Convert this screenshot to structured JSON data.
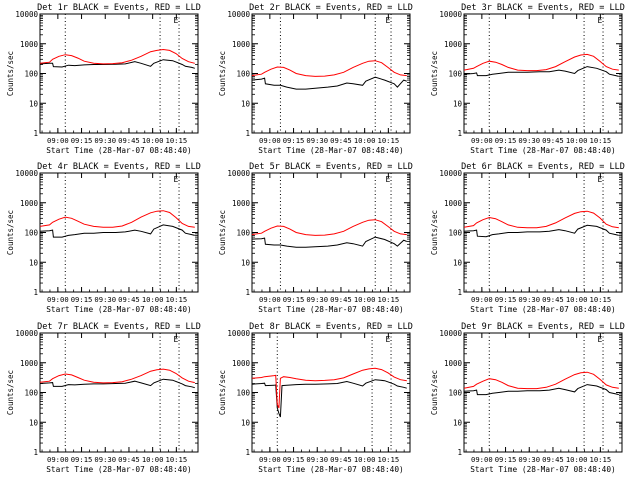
{
  "figure": {
    "xlabel": "Start Time (28-Mar-07 08:48:40)",
    "ylabel": "Counts/sec",
    "y_ticks": [
      "1",
      "10",
      "100",
      "1000",
      "10000"
    ],
    "x_ticks": [
      "09:00",
      "09:15",
      "09:30",
      "09:45",
      "10:00",
      "10:15"
    ],
    "marker": "E",
    "colors": {
      "events": "#000000",
      "lld": "#ff0000",
      "axis": "#000000",
      "background": "#ffffff"
    }
  },
  "chart_data": [
    {
      "type": "line",
      "title": "Det 1r BLACK = Events, RED = LLD",
      "x_range_min": [
        0,
        100
      ],
      "ylim": [
        1,
        10000
      ],
      "y_scale": "log",
      "x_ticks_min": [
        11.3,
        26.3,
        41.3,
        56.3,
        71.3,
        86.3
      ],
      "vlines_min": [
        16,
        76,
        88
      ],
      "marker_min": 86,
      "series": [
        {
          "name": "BLACK = Events",
          "x": [
            0,
            6,
            8,
            8.5,
            14,
            18,
            22,
            28,
            34,
            40,
            48,
            54,
            60,
            64,
            70,
            72,
            78,
            84,
            90,
            92,
            96,
            98
          ],
          "y": [
            210,
            220,
            220,
            170,
            165,
            190,
            185,
            195,
            200,
            200,
            205,
            210,
            250,
            220,
            175,
            220,
            290,
            270,
            200,
            175,
            160,
            150
          ]
        },
        {
          "name": "RED = LLD",
          "x": [
            0,
            6,
            8,
            12,
            16,
            20,
            24,
            28,
            34,
            40,
            46,
            52,
            58,
            64,
            70,
            74,
            78,
            82,
            86,
            90,
            94,
            98
          ],
          "y": [
            220,
            240,
            300,
            380,
            430,
            400,
            330,
            260,
            220,
            210,
            215,
            230,
            280,
            380,
            540,
            600,
            640,
            600,
            470,
            320,
            250,
            220
          ]
        }
      ]
    },
    {
      "type": "line",
      "title": "Det 2r BLACK = Events, RED = LLD",
      "x_range_min": [
        0,
        100
      ],
      "ylim": [
        1,
        10000
      ],
      "y_scale": "log",
      "x_ticks_min": [
        11.3,
        26.3,
        41.3,
        56.3,
        71.3,
        86.3
      ],
      "vlines_min": [
        18,
        78,
        88
      ],
      "marker_min": 86,
      "series": [
        {
          "name": "BLACK = Events",
          "x": [
            0,
            6,
            8,
            8.5,
            14,
            18,
            22,
            28,
            34,
            40,
            48,
            54,
            60,
            64,
            70,
            72,
            78,
            84,
            90,
            92,
            96,
            98
          ],
          "y": [
            60,
            65,
            70,
            45,
            40,
            40,
            35,
            30,
            30,
            32,
            35,
            38,
            48,
            45,
            40,
            55,
            75,
            60,
            45,
            35,
            60,
            55
          ]
        },
        {
          "name": "RED = LLD",
          "x": [
            0,
            6,
            8,
            12,
            16,
            20,
            24,
            28,
            34,
            40,
            46,
            52,
            58,
            64,
            70,
            74,
            78,
            82,
            86,
            90,
            94,
            98
          ],
          "y": [
            85,
            95,
            110,
            140,
            165,
            160,
            130,
            100,
            85,
            80,
            82,
            90,
            110,
            160,
            220,
            260,
            270,
            230,
            160,
            110,
            90,
            85
          ]
        }
      ]
    },
    {
      "type": "line",
      "title": "Det 3r BLACK = Events, RED = LLD",
      "x_range_min": [
        0,
        100
      ],
      "ylim": [
        1,
        10000
      ],
      "y_scale": "log",
      "x_ticks_min": [
        11.3,
        26.3,
        41.3,
        56.3,
        71.3,
        86.3
      ],
      "vlines_min": [
        16,
        76,
        88
      ],
      "marker_min": 86,
      "series": [
        {
          "name": "BLACK = Events",
          "x": [
            0,
            6,
            8,
            8.5,
            14,
            18,
            22,
            28,
            34,
            40,
            48,
            54,
            60,
            64,
            70,
            72,
            78,
            84,
            90,
            92,
            96,
            98
          ],
          "y": [
            95,
            100,
            105,
            85,
            85,
            95,
            100,
            110,
            110,
            110,
            115,
            115,
            130,
            120,
            100,
            125,
            170,
            150,
            115,
            95,
            85,
            80
          ]
        },
        {
          "name": "RED = LLD",
          "x": [
            0,
            6,
            8,
            12,
            16,
            20,
            24,
            28,
            34,
            40,
            46,
            52,
            58,
            64,
            70,
            74,
            78,
            82,
            86,
            90,
            94,
            98
          ],
          "y": [
            130,
            150,
            170,
            220,
            260,
            240,
            200,
            160,
            130,
            125,
            125,
            135,
            170,
            250,
            360,
            420,
            440,
            380,
            260,
            170,
            140,
            130
          ]
        }
      ]
    },
    {
      "type": "line",
      "title": "Det 4r BLACK = Events, RED = LLD",
      "x_range_min": [
        0,
        100
      ],
      "ylim": [
        1,
        10000
      ],
      "y_scale": "log",
      "x_ticks_min": [
        11.3,
        26.3,
        41.3,
        56.3,
        71.3,
        86.3
      ],
      "vlines_min": [
        16,
        76,
        88
      ],
      "marker_min": 86,
      "series": [
        {
          "name": "BLACK = Events",
          "x": [
            0,
            6,
            8,
            8.5,
            14,
            18,
            22,
            28,
            34,
            40,
            48,
            54,
            60,
            64,
            70,
            72,
            78,
            84,
            90,
            92,
            96,
            98
          ],
          "y": [
            110,
            115,
            120,
            70,
            70,
            80,
            85,
            95,
            95,
            100,
            100,
            105,
            120,
            110,
            90,
            130,
            180,
            160,
            120,
            95,
            85,
            80
          ]
        },
        {
          "name": "RED = LLD",
          "x": [
            0,
            6,
            8,
            12,
            16,
            20,
            24,
            28,
            34,
            40,
            46,
            52,
            58,
            64,
            70,
            74,
            78,
            82,
            86,
            90,
            94,
            98
          ],
          "y": [
            160,
            180,
            220,
            280,
            330,
            300,
            240,
            190,
            160,
            150,
            150,
            165,
            220,
            330,
            460,
            520,
            540,
            470,
            320,
            200,
            160,
            150
          ]
        }
      ]
    },
    {
      "type": "line",
      "title": "Det 5r BLACK = Events, RED = LLD",
      "x_range_min": [
        0,
        100
      ],
      "ylim": [
        1,
        10000
      ],
      "y_scale": "log",
      "x_ticks_min": [
        11.3,
        26.3,
        41.3,
        56.3,
        71.3,
        86.3
      ],
      "vlines_min": [
        18,
        78,
        88
      ],
      "marker_min": 86,
      "series": [
        {
          "name": "BLACK = Events",
          "x": [
            0,
            6,
            8,
            8.5,
            14,
            18,
            22,
            28,
            34,
            40,
            48,
            54,
            60,
            64,
            70,
            72,
            78,
            84,
            90,
            92,
            96,
            98
          ],
          "y": [
            60,
            62,
            65,
            40,
            38,
            38,
            35,
            32,
            32,
            33,
            35,
            38,
            45,
            42,
            35,
            50,
            70,
            58,
            42,
            35,
            55,
            50
          ]
        },
        {
          "name": "RED = LLD",
          "x": [
            0,
            6,
            8,
            12,
            16,
            20,
            24,
            28,
            34,
            40,
            46,
            52,
            58,
            64,
            70,
            74,
            78,
            82,
            86,
            90,
            94,
            98
          ],
          "y": [
            85,
            95,
            110,
            140,
            165,
            160,
            130,
            100,
            85,
            80,
            82,
            90,
            110,
            160,
            220,
            260,
            270,
            230,
            160,
            110,
            90,
            85
          ]
        }
      ]
    },
    {
      "type": "line",
      "title": "Det 6r BLACK = Events, RED = LLD",
      "x_range_min": [
        0,
        100
      ],
      "ylim": [
        1,
        10000
      ],
      "y_scale": "log",
      "x_ticks_min": [
        11.3,
        26.3,
        41.3,
        56.3,
        71.3,
        86.3
      ],
      "vlines_min": [
        16,
        76,
        88
      ],
      "marker_min": 86,
      "series": [
        {
          "name": "BLACK = Events",
          "x": [
            0,
            6,
            8,
            8.5,
            14,
            18,
            22,
            28,
            34,
            40,
            48,
            54,
            60,
            64,
            70,
            72,
            78,
            84,
            90,
            92,
            96,
            98
          ],
          "y": [
            110,
            115,
            120,
            75,
            72,
            85,
            90,
            100,
            100,
            105,
            105,
            110,
            125,
            115,
            95,
            130,
            175,
            160,
            120,
            95,
            85,
            80
          ]
        },
        {
          "name": "RED = LLD",
          "x": [
            0,
            6,
            8,
            12,
            16,
            20,
            24,
            28,
            34,
            40,
            46,
            52,
            58,
            64,
            70,
            74,
            78,
            82,
            86,
            90,
            94,
            98
          ],
          "y": [
            150,
            170,
            210,
            270,
            320,
            290,
            230,
            180,
            150,
            145,
            145,
            160,
            210,
            310,
            440,
            500,
            520,
            450,
            310,
            190,
            155,
            145
          ]
        }
      ]
    },
    {
      "type": "line",
      "title": "Det 7r BLACK = Events, RED = LLD",
      "x_range_min": [
        0,
        100
      ],
      "ylim": [
        1,
        10000
      ],
      "y_scale": "log",
      "x_ticks_min": [
        11.3,
        26.3,
        41.3,
        56.3,
        71.3,
        86.3
      ],
      "vlines_min": [
        16,
        76,
        88
      ],
      "marker_min": 86,
      "series": [
        {
          "name": "BLACK = Events",
          "x": [
            0,
            6,
            8,
            8.5,
            14,
            18,
            22,
            28,
            34,
            40,
            48,
            54,
            60,
            64,
            70,
            72,
            78,
            84,
            90,
            92,
            96,
            98
          ],
          "y": [
            200,
            210,
            215,
            160,
            160,
            185,
            180,
            190,
            195,
            195,
            200,
            205,
            240,
            210,
            170,
            210,
            280,
            260,
            195,
            170,
            155,
            145
          ]
        },
        {
          "name": "RED = LLD",
          "x": [
            0,
            6,
            8,
            12,
            16,
            20,
            24,
            28,
            34,
            40,
            46,
            52,
            58,
            64,
            70,
            74,
            78,
            82,
            86,
            90,
            94,
            98
          ],
          "y": [
            220,
            240,
            290,
            370,
            420,
            390,
            320,
            260,
            220,
            210,
            215,
            230,
            280,
            370,
            520,
            580,
            610,
            560,
            440,
            310,
            240,
            215
          ]
        }
      ]
    },
    {
      "type": "line",
      "title": "Det 8r BLACK = Events, RED = LLD",
      "x_range_min": [
        0,
        100
      ],
      "ylim": [
        1,
        10000
      ],
      "y_scale": "log",
      "x_ticks_min": [
        11.3,
        26.3,
        41.3,
        56.3,
        71.3,
        86.3
      ],
      "vlines_min": [
        16,
        76,
        88
      ],
      "marker_min": 86,
      "series": [
        {
          "name": "BLACK = Events",
          "x": [
            0,
            6,
            8,
            8.5,
            14,
            15,
            16,
            17,
            18,
            19,
            22,
            28,
            34,
            40,
            48,
            54,
            60,
            64,
            70,
            72,
            78,
            84,
            90,
            92,
            96,
            98
          ],
          "y": [
            190,
            200,
            205,
            170,
            175,
            180,
            30,
            20,
            15,
            170,
            175,
            185,
            190,
            190,
            195,
            200,
            235,
            205,
            165,
            205,
            270,
            250,
            190,
            165,
            150,
            140
          ]
        },
        {
          "name": "RED = LLD",
          "x": [
            0,
            6,
            8,
            12,
            14,
            15,
            16,
            17,
            18,
            20,
            24,
            28,
            34,
            40,
            46,
            52,
            58,
            64,
            70,
            74,
            78,
            82,
            86,
            90,
            94,
            98
          ],
          "y": [
            300,
            320,
            340,
            360,
            370,
            380,
            40,
            30,
            300,
            340,
            320,
            290,
            260,
            250,
            255,
            270,
            310,
            420,
            560,
            620,
            650,
            590,
            460,
            330,
            270,
            250
          ]
        }
      ]
    },
    {
      "type": "line",
      "title": "Det 9r BLACK = Events, RED = LLD",
      "x_range_min": [
        0,
        100
      ],
      "ylim": [
        1,
        10000
      ],
      "y_scale": "log",
      "x_ticks_min": [
        11.3,
        26.3,
        41.3,
        56.3,
        71.3,
        86.3
      ],
      "vlines_min": [
        16,
        76,
        88
      ],
      "marker_min": 86,
      "series": [
        {
          "name": "BLACK = Events",
          "x": [
            0,
            6,
            8,
            8.5,
            14,
            18,
            22,
            28,
            34,
            40,
            48,
            54,
            60,
            64,
            70,
            72,
            78,
            84,
            90,
            92,
            96,
            98
          ],
          "y": [
            110,
            115,
            120,
            85,
            85,
            95,
            100,
            110,
            110,
            115,
            115,
            120,
            140,
            125,
            105,
            135,
            185,
            165,
            125,
            100,
            90,
            85
          ]
        },
        {
          "name": "RED = LLD",
          "x": [
            0,
            6,
            8,
            12,
            16,
            20,
            24,
            28,
            34,
            40,
            46,
            52,
            58,
            64,
            70,
            74,
            78,
            82,
            86,
            90,
            94,
            98
          ],
          "y": [
            140,
            160,
            190,
            240,
            290,
            270,
            220,
            170,
            140,
            135,
            135,
            150,
            190,
            280,
            400,
            460,
            480,
            410,
            280,
            180,
            150,
            140
          ]
        }
      ]
    }
  ]
}
